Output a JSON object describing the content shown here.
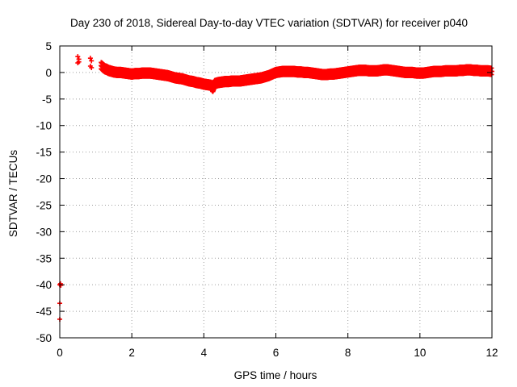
{
  "chart_data": {
    "type": "scatter",
    "title": "Day 230 of 2018, Sidereal Day-to-day VTEC variation (SDTVAR) for receiver p040",
    "xlabel": "GPS time / hours",
    "ylabel": "SDTVAR / TECUs",
    "xlim": [
      0,
      12
    ],
    "ylim": [
      -50,
      5
    ],
    "xticks": [
      0,
      2,
      4,
      6,
      8,
      10,
      12
    ],
    "yticks": [
      5,
      0,
      -5,
      -10,
      -15,
      -20,
      -25,
      -30,
      -35,
      -40,
      -45,
      -50
    ],
    "grid": true,
    "grid_style": "dotted",
    "marker": "plus",
    "colors": {
      "series": "#ff0000",
      "axes": "#000000",
      "grid": "#a0a0a0"
    },
    "series": [
      {
        "x": [
          0.0,
          0.0,
          0.02,
          0.0,
          0.03,
          0.5,
          0.53,
          0.5,
          0.53,
          0.85,
          0.88,
          0.85,
          0.88,
          1.15,
          1.2,
          1.25,
          1.3,
          1.35,
          1.4,
          1.5,
          1.6,
          1.7,
          1.8,
          1.9,
          2.0,
          2.1,
          2.2,
          2.3,
          2.4,
          2.5,
          2.6,
          2.7,
          2.8,
          2.9,
          3.0,
          3.1,
          3.2,
          3.3,
          3.4,
          3.5,
          3.6,
          3.7,
          3.8,
          3.9,
          4.0,
          4.1,
          4.2,
          4.25,
          4.3,
          4.4,
          4.5,
          4.6,
          4.7,
          4.8,
          4.9,
          5.0,
          5.1,
          5.2,
          5.3,
          5.4,
          5.5,
          5.6,
          5.7,
          5.8,
          5.9,
          6.0,
          6.1,
          6.2,
          6.3,
          6.4,
          6.5,
          6.6,
          6.7,
          6.8,
          6.9,
          7.0,
          7.1,
          7.2,
          7.3,
          7.4,
          7.5,
          7.6,
          7.7,
          7.8,
          7.9,
          8.0,
          8.1,
          8.2,
          8.3,
          8.4,
          8.5,
          8.6,
          8.7,
          8.8,
          8.9,
          9.0,
          9.1,
          9.2,
          9.3,
          9.4,
          9.5,
          9.6,
          9.7,
          9.8,
          9.9,
          10.0,
          10.1,
          10.2,
          10.3,
          10.4,
          10.5,
          10.6,
          10.7,
          10.8,
          10.9,
          11.0,
          11.1,
          11.2,
          11.3,
          11.4,
          11.5,
          11.6,
          11.7,
          11.8,
          11.9,
          12.0
        ],
        "y": [
          -40.0,
          -43.5,
          -39.8,
          -46.5,
          -40.1,
          3.0,
          2.5,
          1.8,
          2.0,
          2.7,
          2.2,
          1.2,
          0.9,
          1.3,
          1.0,
          0.7,
          0.6,
          0.4,
          0.3,
          0.1,
          0.0,
          0.0,
          -0.1,
          -0.2,
          -0.3,
          -0.2,
          -0.2,
          -0.1,
          -0.1,
          -0.1,
          -0.2,
          -0.3,
          -0.4,
          -0.5,
          -0.6,
          -0.8,
          -1.0,
          -1.1,
          -1.2,
          -1.4,
          -1.6,
          -1.7,
          -1.9,
          -2.0,
          -2.2,
          -2.3,
          -2.4,
          -3.0,
          -2.1,
          -1.9,
          -1.8,
          -1.7,
          -1.7,
          -1.6,
          -1.6,
          -1.6,
          -1.5,
          -1.4,
          -1.3,
          -1.2,
          -1.1,
          -1.0,
          -0.8,
          -0.6,
          -0.3,
          0.0,
          0.1,
          0.2,
          0.2,
          0.2,
          0.2,
          0.1,
          0.1,
          0.0,
          0.0,
          -0.1,
          -0.2,
          -0.3,
          -0.4,
          -0.4,
          -0.3,
          -0.3,
          -0.2,
          -0.1,
          0.0,
          0.1,
          0.2,
          0.3,
          0.4,
          0.4,
          0.4,
          0.3,
          0.3,
          0.3,
          0.4,
          0.5,
          0.5,
          0.4,
          0.3,
          0.2,
          0.1,
          0.0,
          0.0,
          0.0,
          -0.1,
          -0.1,
          -0.1,
          0.0,
          0.1,
          0.2,
          0.2,
          0.2,
          0.3,
          0.3,
          0.3,
          0.3,
          0.4,
          0.4,
          0.5,
          0.5,
          0.4,
          0.4,
          0.3,
          0.3,
          0.3,
          0.2
        ]
      }
    ]
  }
}
